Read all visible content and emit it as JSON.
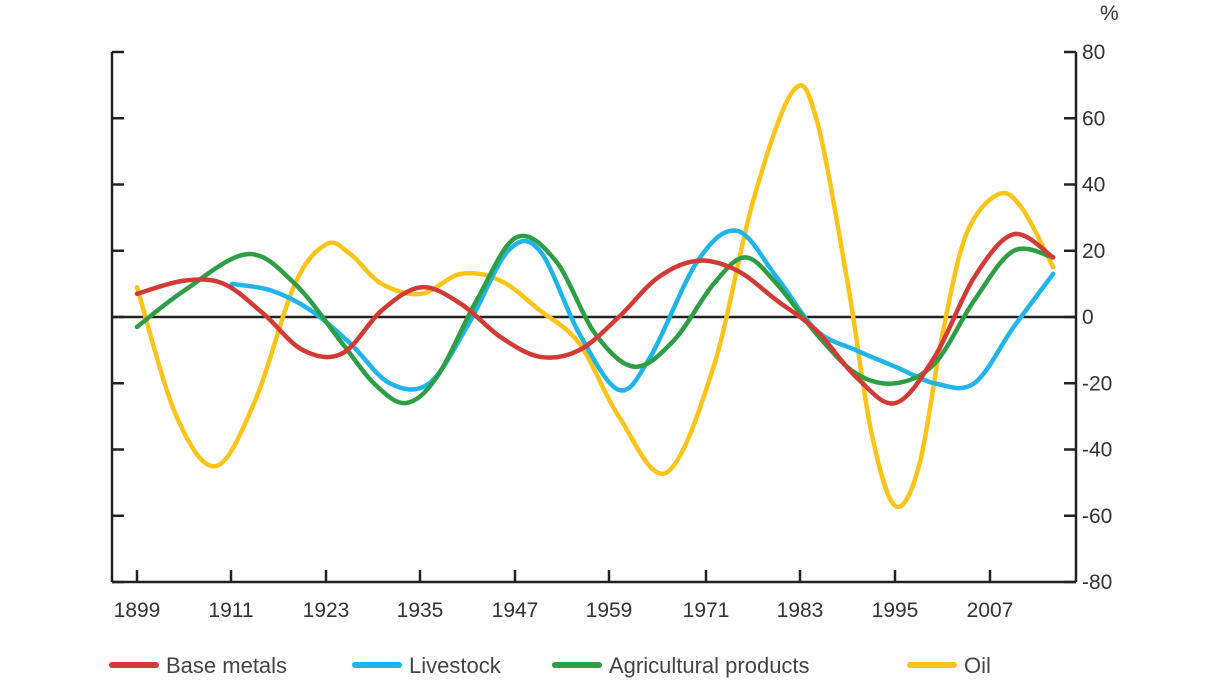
{
  "chart_data": {
    "type": "line",
    "unit_label": "%",
    "xlim": [
      1899,
      2019
    ],
    "ylim": [
      -80,
      80
    ],
    "x_ticks": [
      "1899",
      "1911",
      "1923",
      "1935",
      "1947",
      "1959",
      "1971",
      "1983",
      "1995",
      "2007"
    ],
    "y_ticks": [
      "80",
      "60",
      "40",
      "20",
      "0",
      "-20",
      "-40",
      "-60",
      "-80"
    ],
    "y_tick_values": [
      80,
      60,
      40,
      20,
      0,
      -20,
      -40,
      -60,
      -80
    ],
    "zero_line": true,
    "legend_position": "bottom",
    "series": [
      {
        "name": "Base metals",
        "color": "#d23a35",
        "x": [
          1899,
          1905,
          1910,
          1915,
          1920,
          1925,
          1930,
          1935,
          1940,
          1945,
          1950,
          1955,
          1960,
          1965,
          1970,
          1975,
          1980,
          1985,
          1990,
          1995,
          2000,
          2005,
          2010,
          2015
        ],
        "values": [
          7,
          11,
          10,
          1,
          -10,
          -11,
          2,
          9,
          4,
          -6,
          -12,
          -10,
          0,
          12,
          17,
          14,
          5,
          -4,
          -18,
          -26,
          -12,
          12,
          25,
          18
        ]
      },
      {
        "name": "Livestock",
        "color": "#1fb5ea",
        "x": [
          1911,
          1916,
          1921,
          1926,
          1931,
          1936,
          1941,
          1946,
          1950,
          1955,
          1960,
          1964,
          1970,
          1975,
          1980,
          1985,
          1990,
          1995,
          2000,
          2005,
          2010,
          2015
        ],
        "values": [
          10,
          8,
          2,
          -8,
          -20,
          -20,
          -2,
          20,
          20,
          -5,
          -22,
          -12,
          17,
          26,
          12,
          -4,
          -10,
          -15,
          -20,
          -20,
          -3,
          13
        ]
      },
      {
        "name": "Agricultural products",
        "color": "#2e9e45",
        "x": [
          1899,
          1905,
          1913,
          1919,
          1925,
          1929,
          1933,
          1937,
          1942,
          1947,
          1952,
          1957,
          1962,
          1967,
          1972,
          1976,
          1980,
          1985,
          1990,
          1995,
          2000,
          2005,
          2010,
          2015
        ],
        "values": [
          -3,
          8,
          19,
          10,
          -8,
          -20,
          -26,
          -18,
          5,
          24,
          17,
          -5,
          -15,
          -7,
          10,
          18,
          10,
          -5,
          -17,
          -20,
          -14,
          5,
          20,
          18
        ]
      },
      {
        "name": "Oil",
        "color": "#fcc419",
        "x": [
          1899,
          1904,
          1909,
          1914,
          1919,
          1923,
          1926,
          1930,
          1935,
          1940,
          1945,
          1950,
          1955,
          1960,
          1966,
          1972,
          1977,
          1982,
          1985,
          1989,
          1992,
          1995,
          1998,
          2001,
          2004,
          2008,
          2011,
          2015
        ],
        "values": [
          9,
          -30,
          -45,
          -25,
          10,
          22,
          19,
          10,
          7,
          13,
          11,
          2,
          -8,
          -30,
          -47,
          -15,
          35,
          68,
          60,
          10,
          -35,
          -57,
          -45,
          -5,
          25,
          37,
          33,
          15
        ]
      }
    ]
  }
}
